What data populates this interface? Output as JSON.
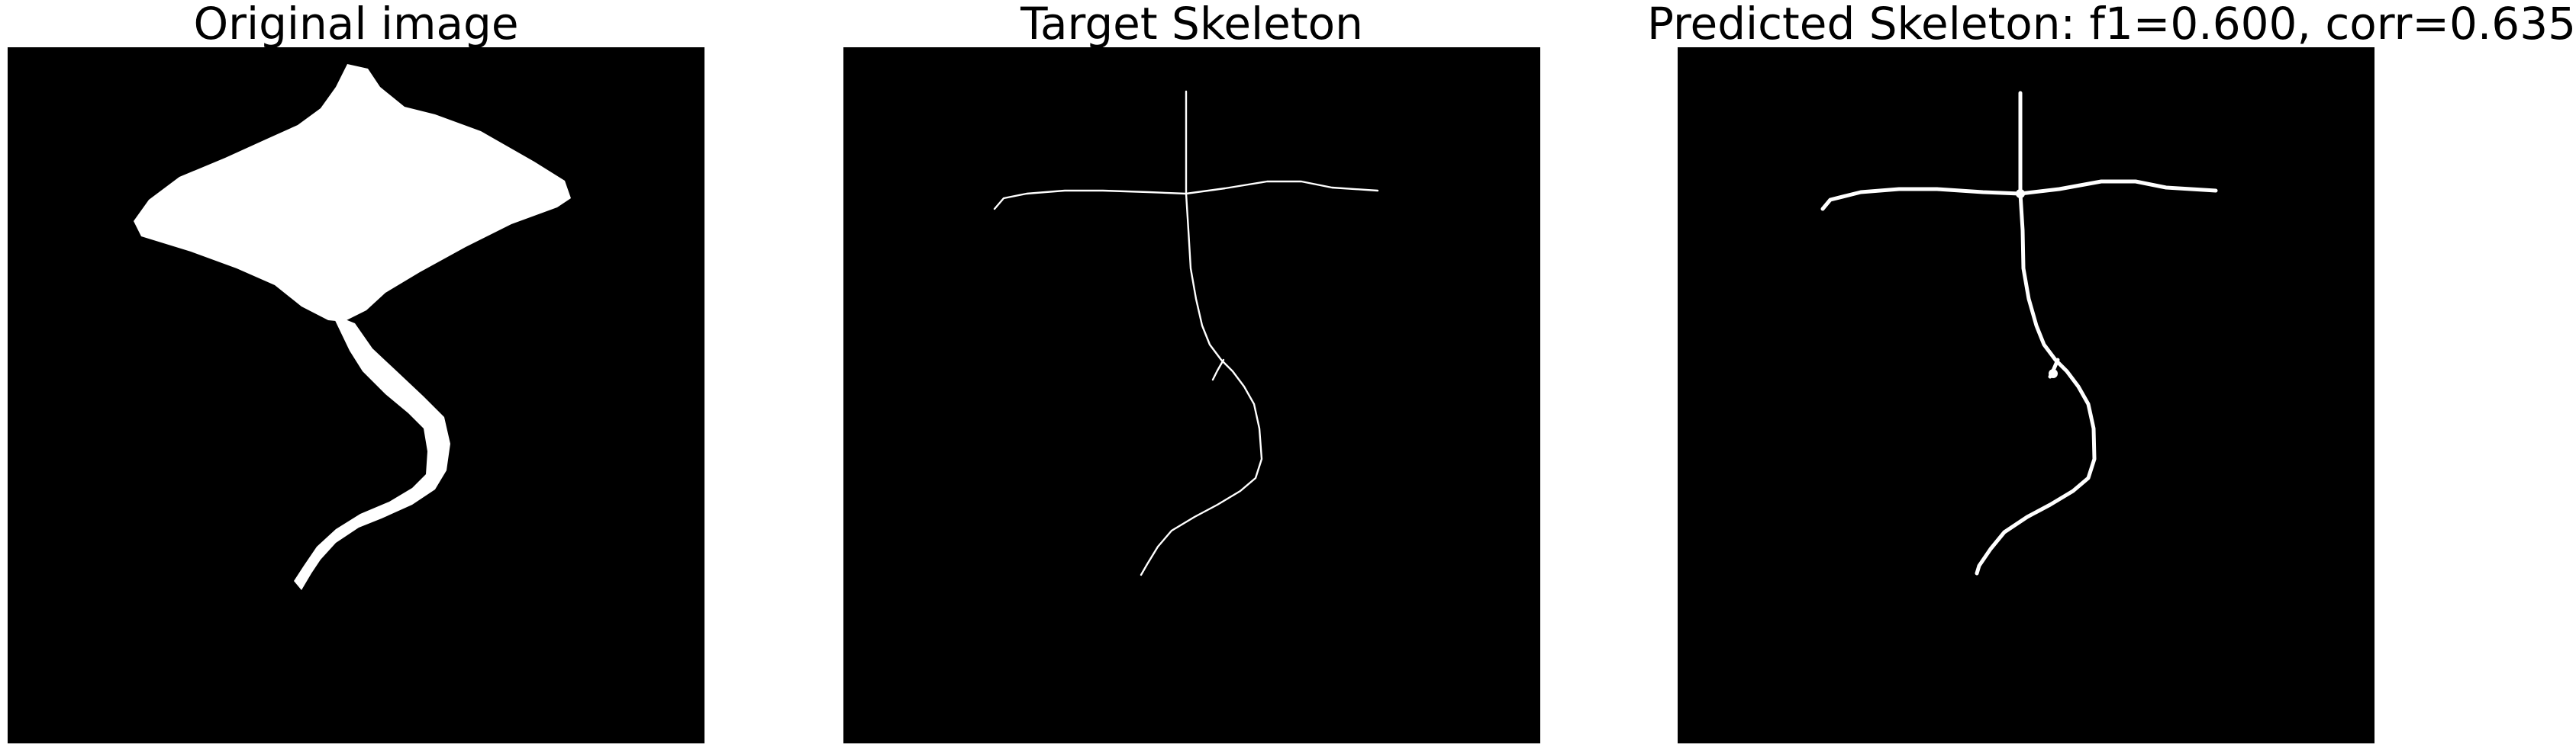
{
  "figure": {
    "background_color": "#ffffff",
    "image_background_color": "#000000",
    "foreground_color": "#ffffff"
  },
  "panels": [
    {
      "id": "original",
      "title": "Original image",
      "content": "binary silhouette of a manta ray shape with a long curved tail"
    },
    {
      "id": "target",
      "title": "Target Skeleton",
      "content": "thin one-pixel skeleton lines"
    },
    {
      "id": "predicted",
      "title": "Predicted Skeleton: f1=0.600, corr=0.635",
      "content": "thicker predicted skeleton lines",
      "metrics": {
        "f1": 0.6,
        "corr": 0.635
      }
    }
  ]
}
